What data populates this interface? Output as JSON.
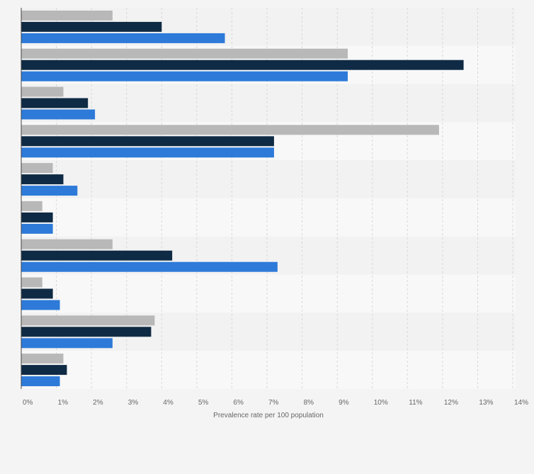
{
  "chart_data": {
    "type": "bar",
    "orientation": "horizontal",
    "title": "",
    "xlabel": "Prevalence rate per 100 population",
    "ylabel": "",
    "xlim": [
      0,
      14
    ],
    "x_ticks": [
      0,
      1,
      2,
      3,
      4,
      5,
      6,
      7,
      8,
      9,
      10,
      11,
      12,
      13,
      14
    ],
    "tick_suffix": "%",
    "grid": true,
    "legend": "none",
    "categories": [
      "",
      "",
      "",
      "",
      "",
      "",
      "",
      "",
      "",
      ""
    ],
    "series": [
      {
        "color": "#b8b8b8",
        "values": [
          2.6,
          9.3,
          1.2,
          11.9,
          0.9,
          0.6,
          2.6,
          0.6,
          3.8,
          1.2
        ]
      },
      {
        "color": "#0f2a44",
        "values": [
          4.0,
          12.6,
          1.9,
          7.2,
          1.2,
          0.9,
          4.3,
          0.9,
          3.7,
          1.3
        ]
      },
      {
        "color": "#2d7ad9",
        "values": [
          5.8,
          9.3,
          2.1,
          7.2,
          1.6,
          0.9,
          7.3,
          1.1,
          2.6,
          1.1
        ]
      }
    ]
  }
}
